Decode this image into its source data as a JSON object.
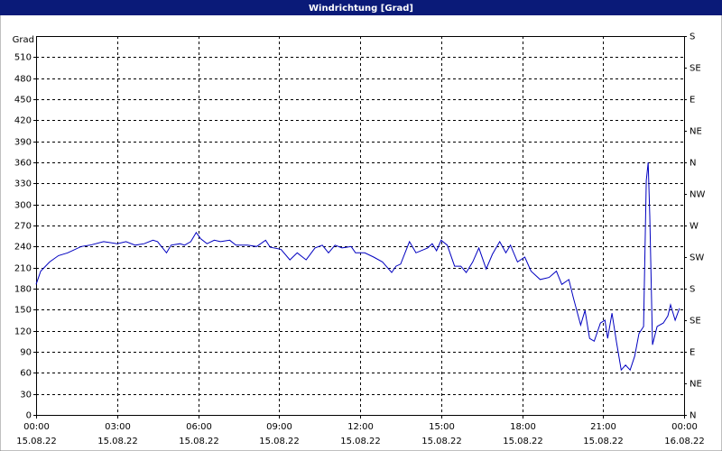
{
  "chart_data": {
    "type": "line",
    "title": "Windrichtung [Grad]",
    "ylabel": "Grad",
    "xlim": [
      0,
      24
    ],
    "xticks": [
      {
        "value": 0,
        "label": "00:00"
      },
      {
        "value": 3,
        "label": "03:00"
      },
      {
        "value": 6,
        "label": "06:00"
      },
      {
        "value": 9,
        "label": "09:00"
      },
      {
        "value": 12,
        "label": "12:00"
      },
      {
        "value": 15,
        "label": "15:00"
      },
      {
        "value": 18,
        "label": "18:00"
      },
      {
        "value": 21,
        "label": "21:00"
      },
      {
        "value": 24,
        "label": "00:00"
      }
    ],
    "xtick_dates": [
      "15.08.22",
      "15.08.22",
      "15.08.22",
      "15.08.22",
      "15.08.22",
      "15.08.22",
      "15.08.22",
      "15.08.22",
      "16.08.22"
    ],
    "ylim": [
      0,
      540
    ],
    "yticks": [
      0,
      30,
      60,
      90,
      120,
      150,
      180,
      210,
      240,
      270,
      300,
      330,
      360,
      390,
      420,
      450,
      480,
      510
    ],
    "y2lim": [
      0,
      540
    ],
    "y2ticks": [
      {
        "value": 0,
        "label": "N"
      },
      {
        "value": 45,
        "label": "NE"
      },
      {
        "value": 90,
        "label": "E"
      },
      {
        "value": 135,
        "label": "SE"
      },
      {
        "value": 180,
        "label": "S"
      },
      {
        "value": 225,
        "label": "SW"
      },
      {
        "value": 270,
        "label": "W"
      },
      {
        "value": 315,
        "label": "NW"
      },
      {
        "value": 360,
        "label": "N"
      },
      {
        "value": 405,
        "label": "NE"
      },
      {
        "value": 450,
        "label": "E"
      },
      {
        "value": 495,
        "label": "SE"
      },
      {
        "value": 540,
        "label": "S"
      }
    ],
    "grid": true,
    "x": [
      0,
      0.17,
      0.5,
      0.83,
      1.17,
      1.67,
      2,
      2.5,
      3,
      3.33,
      3.67,
      4,
      4.33,
      4.5,
      4.83,
      5,
      5.33,
      5.5,
      5.73,
      5.93,
      6.1,
      6.33,
      6.6,
      6.83,
      7.17,
      7.4,
      7.83,
      8.17,
      8.5,
      8.67,
      9.07,
      9.4,
      9.67,
      10,
      10.33,
      10.6,
      10.83,
      11.07,
      11.33,
      11.67,
      11.83,
      12.17,
      12.5,
      12.83,
      13.17,
      13.33,
      13.5,
      13.83,
      14.07,
      14.5,
      14.67,
      14.83,
      15,
      15.23,
      15.5,
      15.73,
      15.93,
      16.17,
      16.4,
      16.67,
      16.9,
      17.17,
      17.4,
      17.57,
      17.83,
      18.1,
      18.33,
      18.67,
      19,
      19.27,
      19.47,
      19.73,
      19.9,
      20.17,
      20.33,
      20.5,
      20.67,
      20.9,
      21.07,
      21.17,
      21.33,
      21.5,
      21.67,
      21.83,
      22,
      22.17,
      22.33,
      22.5,
      22.6,
      22.67,
      22.73,
      22.83,
      23,
      23.23,
      23.4,
      23.5,
      23.67,
      23.83
    ],
    "series": [
      {
        "name": "Windrichtung",
        "color": "#0000c0",
        "values": [
          186,
          205,
          218,
          227,
          231,
          240,
          242,
          247,
          244,
          247,
          242,
          244,
          249,
          247,
          231,
          242,
          244,
          242,
          247,
          260,
          251,
          244,
          249,
          247,
          249,
          242,
          242,
          240,
          249,
          239,
          236,
          221,
          231,
          221,
          238,
          242,
          231,
          242,
          238,
          240,
          231,
          231,
          225,
          218,
          203,
          212,
          215,
          247,
          231,
          238,
          244,
          234,
          249,
          242,
          212,
          212,
          203,
          218,
          238,
          208,
          229,
          247,
          231,
          242,
          218,
          225,
          205,
          193,
          196,
          205,
          186,
          193,
          167,
          128,
          149,
          109,
          105,
          131,
          135,
          109,
          145,
          103,
          64,
          71,
          64,
          84,
          116,
          126,
          334,
          360,
          283,
          100,
          126,
          131,
          141,
          157,
          135,
          152
        ]
      }
    ]
  }
}
